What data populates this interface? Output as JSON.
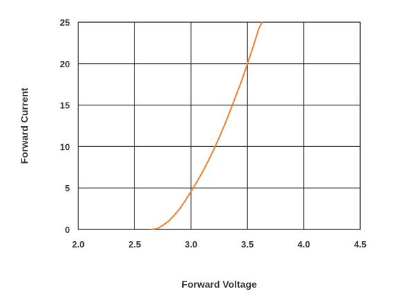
{
  "chart_data": {
    "type": "line",
    "xlabel": "Forward Voltage",
    "ylabel": "Forward Current",
    "xlim": [
      2.0,
      4.5
    ],
    "ylim": [
      0,
      25
    ],
    "x_ticks": [
      "2.0",
      "2.5",
      "3.0",
      "3.5",
      "4.0",
      "4.5"
    ],
    "y_ticks": [
      "0",
      "5",
      "10",
      "15",
      "20",
      "25"
    ],
    "grid": true,
    "legend": "none",
    "series": [
      {
        "color": "#ef7d2d",
        "x": [
          2.65,
          2.7,
          2.75,
          2.8,
          2.85,
          2.9,
          2.95,
          3.0,
          3.05,
          3.1,
          3.15,
          3.2,
          3.25,
          3.3,
          3.35,
          3.4,
          3.45,
          3.5,
          3.55,
          3.6,
          3.63
        ],
        "y": [
          0,
          0.1,
          0.5,
          1.0,
          1.7,
          2.5,
          3.5,
          4.6,
          5.7,
          6.9,
          8.2,
          9.6,
          11.1,
          12.7,
          14.4,
          16.2,
          18.0,
          20.0,
          22.0,
          24.2,
          25.0
        ]
      }
    ]
  }
}
